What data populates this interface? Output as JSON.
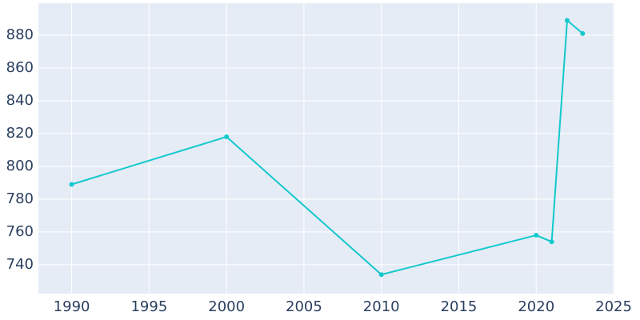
{
  "chart_data": {
    "type": "line",
    "x": [
      1990,
      2000,
      2010,
      2020,
      2021,
      2022,
      2023
    ],
    "series": [
      {
        "color": "#12c9cc",
        "values": [
          789,
          818,
          734,
          758,
          754,
          889,
          881
        ]
      }
    ],
    "xlim": [
      1987.85,
      2025.05
    ],
    "xticks": [
      1990,
      1995,
      2000,
      2005,
      2010,
      2015,
      2020,
      2025
    ],
    "ylim": [
      722.4,
      899.5
    ],
    "yticks": [
      740,
      760,
      780,
      800,
      820,
      840,
      860,
      880
    ],
    "grid": true,
    "background": "#e5ecf6"
  }
}
